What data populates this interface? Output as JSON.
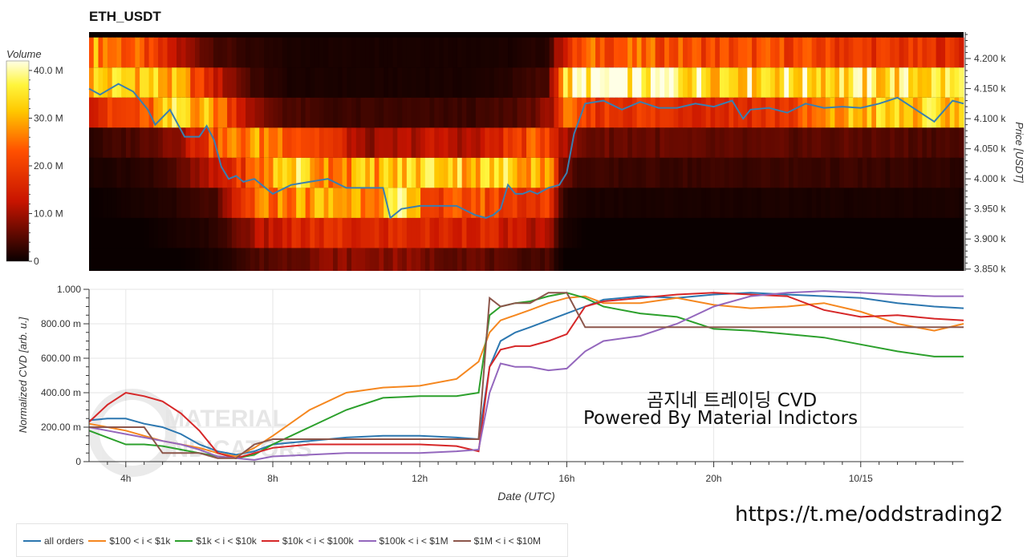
{
  "title": "ETH_USDT",
  "overlay_line1": "곰지네 트레이딩 CVD",
  "overlay_line2": "Powered By Material Indictors",
  "url": "https://t.me/oddstrading2",
  "watermark": [
    "MATERIAL",
    "INDICATORS"
  ],
  "colors": {
    "price_line": "#3a7fb0",
    "series": [
      "#2c77b0",
      "#f5871f",
      "#2ca02c",
      "#d62728",
      "#9467bd",
      "#8c564b"
    ]
  },
  "chart_data": [
    {
      "type": "heatmap",
      "title": "ETH_USDT",
      "colorbar_label": "Volume",
      "colorbar_ticks": [
        "0",
        "10.0 M",
        "20.0 M",
        "30.0 M",
        "40.0 M"
      ],
      "colorbar_values": [
        0,
        10000000,
        20000000,
        30000000,
        40000000
      ],
      "y_label": "Price [USDT]",
      "y_ticks": [
        "3.850 k",
        "3.900 k",
        "3.950 k",
        "4.000 k",
        "4.050 k",
        "4.100 k",
        "4.150 k",
        "4.200 k"
      ],
      "y_tick_values": [
        3850,
        3900,
        3950,
        4000,
        4050,
        4100,
        4150,
        4200
      ],
      "ylim": [
        3847,
        4244
      ],
      "xlim": [
        3.0,
        26.8
      ],
      "price_bands": [
        4210,
        4160,
        4110,
        4060,
        4010,
        3960,
        3910,
        3860
      ],
      "volume_profile": {
        "time_knots": [
          3.0,
          4.5,
          5.5,
          6.5,
          7.5,
          8.5,
          9.5,
          10.5,
          11.5,
          12.5,
          13.5,
          14.5,
          15.5,
          15.9,
          16.5,
          18.0,
          20.0,
          22.0,
          24.0,
          26.8
        ],
        "bands": [
          [
            28,
            20,
            10,
            4,
            2,
            1,
            1,
            1,
            1,
            1,
            1,
            1,
            2,
            14,
            22,
            22,
            20,
            20,
            18,
            16
          ],
          [
            30,
            32,
            26,
            12,
            3,
            1,
            1,
            1,
            1,
            1,
            1,
            2,
            4,
            30,
            38,
            38,
            34,
            34,
            33,
            33
          ],
          [
            16,
            20,
            34,
            26,
            8,
            4,
            3,
            3,
            3,
            3,
            3,
            4,
            8,
            22,
            18,
            18,
            16,
            18,
            30,
            30
          ],
          [
            2,
            5,
            10,
            22,
            26,
            24,
            18,
            8,
            10,
            12,
            10,
            18,
            22,
            10,
            6,
            6,
            5,
            5,
            5,
            4
          ],
          [
            1,
            2,
            5,
            12,
            22,
            34,
            26,
            28,
            30,
            34,
            30,
            32,
            28,
            6,
            3,
            3,
            3,
            3,
            3,
            2
          ],
          [
            0,
            1,
            2,
            4,
            22,
            26,
            28,
            28,
            32,
            18,
            22,
            18,
            18,
            2,
            1,
            1,
            1,
            1,
            1,
            1
          ],
          [
            0,
            0,
            1,
            2,
            10,
            14,
            16,
            14,
            16,
            14,
            16,
            12,
            10,
            1,
            0,
            0,
            0,
            0,
            0,
            0
          ],
          [
            0,
            0,
            0,
            1,
            4,
            6,
            8,
            8,
            8,
            6,
            6,
            4,
            4,
            0,
            0,
            0,
            0,
            0,
            0,
            0
          ]
        ]
      },
      "price_line": {
        "x": [
          3.0,
          3.3,
          3.8,
          4.2,
          4.6,
          4.8,
          5.2,
          5.6,
          6.0,
          6.2,
          6.4,
          6.6,
          6.8,
          7.0,
          7.2,
          7.5,
          8.0,
          8.5,
          9.0,
          9.5,
          10.0,
          10.5,
          11.0,
          11.2,
          11.5,
          12.0,
          12.5,
          13.0,
          13.5,
          13.8,
          14.0,
          14.2,
          14.4,
          14.6,
          14.8,
          15.0,
          15.2,
          15.5,
          15.8,
          16.0,
          16.2,
          16.5,
          17.0,
          17.5,
          18.0,
          18.5,
          19.0,
          19.5,
          20.0,
          20.5,
          20.8,
          21.0,
          21.5,
          22.0,
          22.5,
          23.0,
          23.5,
          24.0,
          24.5,
          25.0,
          25.5,
          26.0,
          26.5,
          26.8
        ],
        "y": [
          4150,
          4140,
          4158,
          4145,
          4115,
          4090,
          4115,
          4070,
          4070,
          4088,
          4065,
          4020,
          4000,
          4005,
          3995,
          4000,
          3975,
          3990,
          3995,
          4000,
          3985,
          3985,
          3985,
          3935,
          3950,
          3955,
          3955,
          3955,
          3940,
          3935,
          3940,
          3950,
          3990,
          3975,
          3975,
          3980,
          3975,
          3985,
          3990,
          4010,
          4075,
          4125,
          4130,
          4115,
          4128,
          4118,
          4118,
          4125,
          4120,
          4130,
          4100,
          4115,
          4118,
          4110,
          4125,
          4118,
          4120,
          4118,
          4125,
          4135,
          4115,
          4095,
          4130,
          4125
        ]
      }
    },
    {
      "type": "line",
      "ylabel": "Normalized CVD [arb. u.]",
      "xlabel": "Date (UTC)",
      "ylim": [
        0,
        1.0
      ],
      "xlim": [
        3.0,
        26.8
      ],
      "grid": true,
      "legend_position": "bottom",
      "x_tick_values": [
        4,
        8,
        12,
        16,
        20,
        24
      ],
      "x_ticks": [
        "4h",
        "8h",
        "12h",
        "16h",
        "20h",
        "10/15"
      ],
      "y_tick_values": [
        0,
        0.2,
        0.4,
        0.6,
        0.8,
        1.0
      ],
      "y_ticks": [
        "0",
        "200.00 m",
        "400.00 m",
        "600.00 m",
        "800.00 m",
        "1.000"
      ],
      "x": [
        3.0,
        3.5,
        4.0,
        4.5,
        5.0,
        5.5,
        6.0,
        6.5,
        7.0,
        7.5,
        8.0,
        9.0,
        10.0,
        11.0,
        12.0,
        13.0,
        13.6,
        13.9,
        14.2,
        14.6,
        15.0,
        15.5,
        16.0,
        16.5,
        17.0,
        18.0,
        19.0,
        20.0,
        21.0,
        22.0,
        23.0,
        24.0,
        25.0,
        26.0,
        26.8
      ],
      "series": [
        {
          "name": "all orders",
          "values": [
            0.24,
            0.25,
            0.25,
            0.22,
            0.2,
            0.16,
            0.1,
            0.06,
            0.04,
            0.06,
            0.1,
            0.12,
            0.14,
            0.15,
            0.15,
            0.14,
            0.13,
            0.55,
            0.7,
            0.75,
            0.78,
            0.82,
            0.86,
            0.9,
            0.94,
            0.96,
            0.95,
            0.97,
            0.98,
            0.97,
            0.96,
            0.95,
            0.92,
            0.9,
            0.89
          ]
        },
        {
          "name": "$100 < i < $1k",
          "values": [
            0.22,
            0.2,
            0.18,
            0.15,
            0.12,
            0.1,
            0.08,
            0.05,
            0.03,
            0.08,
            0.15,
            0.3,
            0.4,
            0.43,
            0.44,
            0.48,
            0.58,
            0.75,
            0.82,
            0.85,
            0.88,
            0.92,
            0.95,
            0.96,
            0.92,
            0.92,
            0.95,
            0.91,
            0.89,
            0.9,
            0.92,
            0.87,
            0.8,
            0.76,
            0.8
          ]
        },
        {
          "name": "$1k < i < $10k",
          "values": [
            0.18,
            0.14,
            0.1,
            0.1,
            0.09,
            0.07,
            0.05,
            0.03,
            0.02,
            0.04,
            0.1,
            0.2,
            0.3,
            0.37,
            0.38,
            0.38,
            0.4,
            0.85,
            0.9,
            0.92,
            0.93,
            0.96,
            0.98,
            0.95,
            0.9,
            0.86,
            0.84,
            0.77,
            0.76,
            0.74,
            0.72,
            0.68,
            0.64,
            0.61,
            0.61
          ]
        },
        {
          "name": "$10k < i < $100k",
          "values": [
            0.23,
            0.33,
            0.4,
            0.38,
            0.35,
            0.28,
            0.18,
            0.05,
            0.02,
            0.05,
            0.08,
            0.1,
            0.1,
            0.1,
            0.1,
            0.09,
            0.06,
            0.55,
            0.65,
            0.67,
            0.67,
            0.7,
            0.74,
            0.9,
            0.93,
            0.95,
            0.97,
            0.98,
            0.97,
            0.96,
            0.88,
            0.84,
            0.85,
            0.83,
            0.82
          ]
        },
        {
          "name": "$100k < i < $1M",
          "values": [
            0.2,
            0.18,
            0.16,
            0.14,
            0.12,
            0.1,
            0.07,
            0.03,
            0.02,
            0.01,
            0.03,
            0.04,
            0.05,
            0.05,
            0.05,
            0.06,
            0.07,
            0.4,
            0.57,
            0.55,
            0.55,
            0.53,
            0.54,
            0.64,
            0.7,
            0.73,
            0.8,
            0.9,
            0.96,
            0.98,
            0.99,
            0.98,
            0.97,
            0.96,
            0.96
          ]
        },
        {
          "name": "$1M < i < $10M",
          "values": [
            0.2,
            0.2,
            0.2,
            0.2,
            0.05,
            0.05,
            0.05,
            0.02,
            0.02,
            0.1,
            0.13,
            0.13,
            0.13,
            0.13,
            0.13,
            0.13,
            0.13,
            0.95,
            0.9,
            0.92,
            0.92,
            0.98,
            0.98,
            0.78,
            0.78,
            0.78,
            0.78,
            0.78,
            0.78,
            0.78,
            0.78,
            0.78,
            0.78,
            0.78,
            0.78
          ]
        }
      ]
    }
  ]
}
